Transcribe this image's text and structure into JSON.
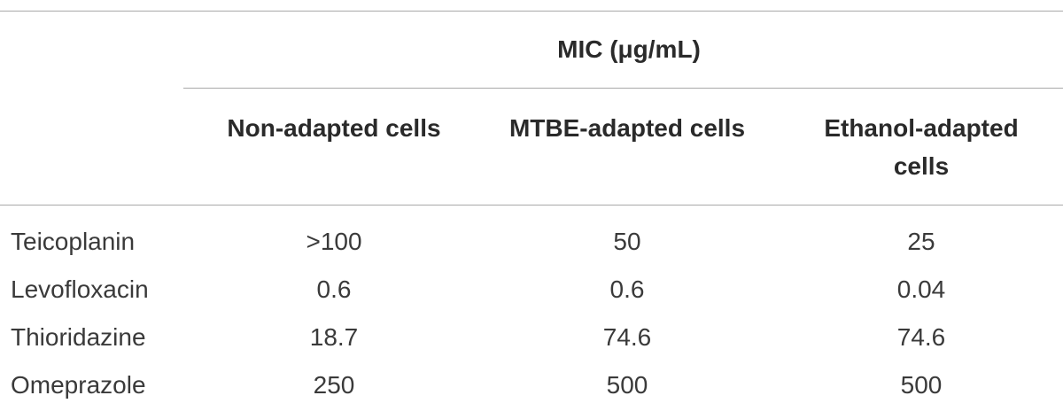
{
  "table": {
    "group_header": "MIC (μg/mL)",
    "columns": [
      "Non-adapted cells",
      "MTBE-adapted cells",
      "Ethanol-adapted cells"
    ],
    "rows": [
      [
        "Teicoplanin",
        ">100",
        "50",
        "25"
      ],
      [
        "Levofloxacin",
        "0.6",
        "0.6",
        "0.04"
      ],
      [
        "Thioridazine",
        "18.7",
        "74.6",
        "74.6"
      ],
      [
        "Omeprazole",
        "250",
        "500",
        "500"
      ]
    ]
  }
}
